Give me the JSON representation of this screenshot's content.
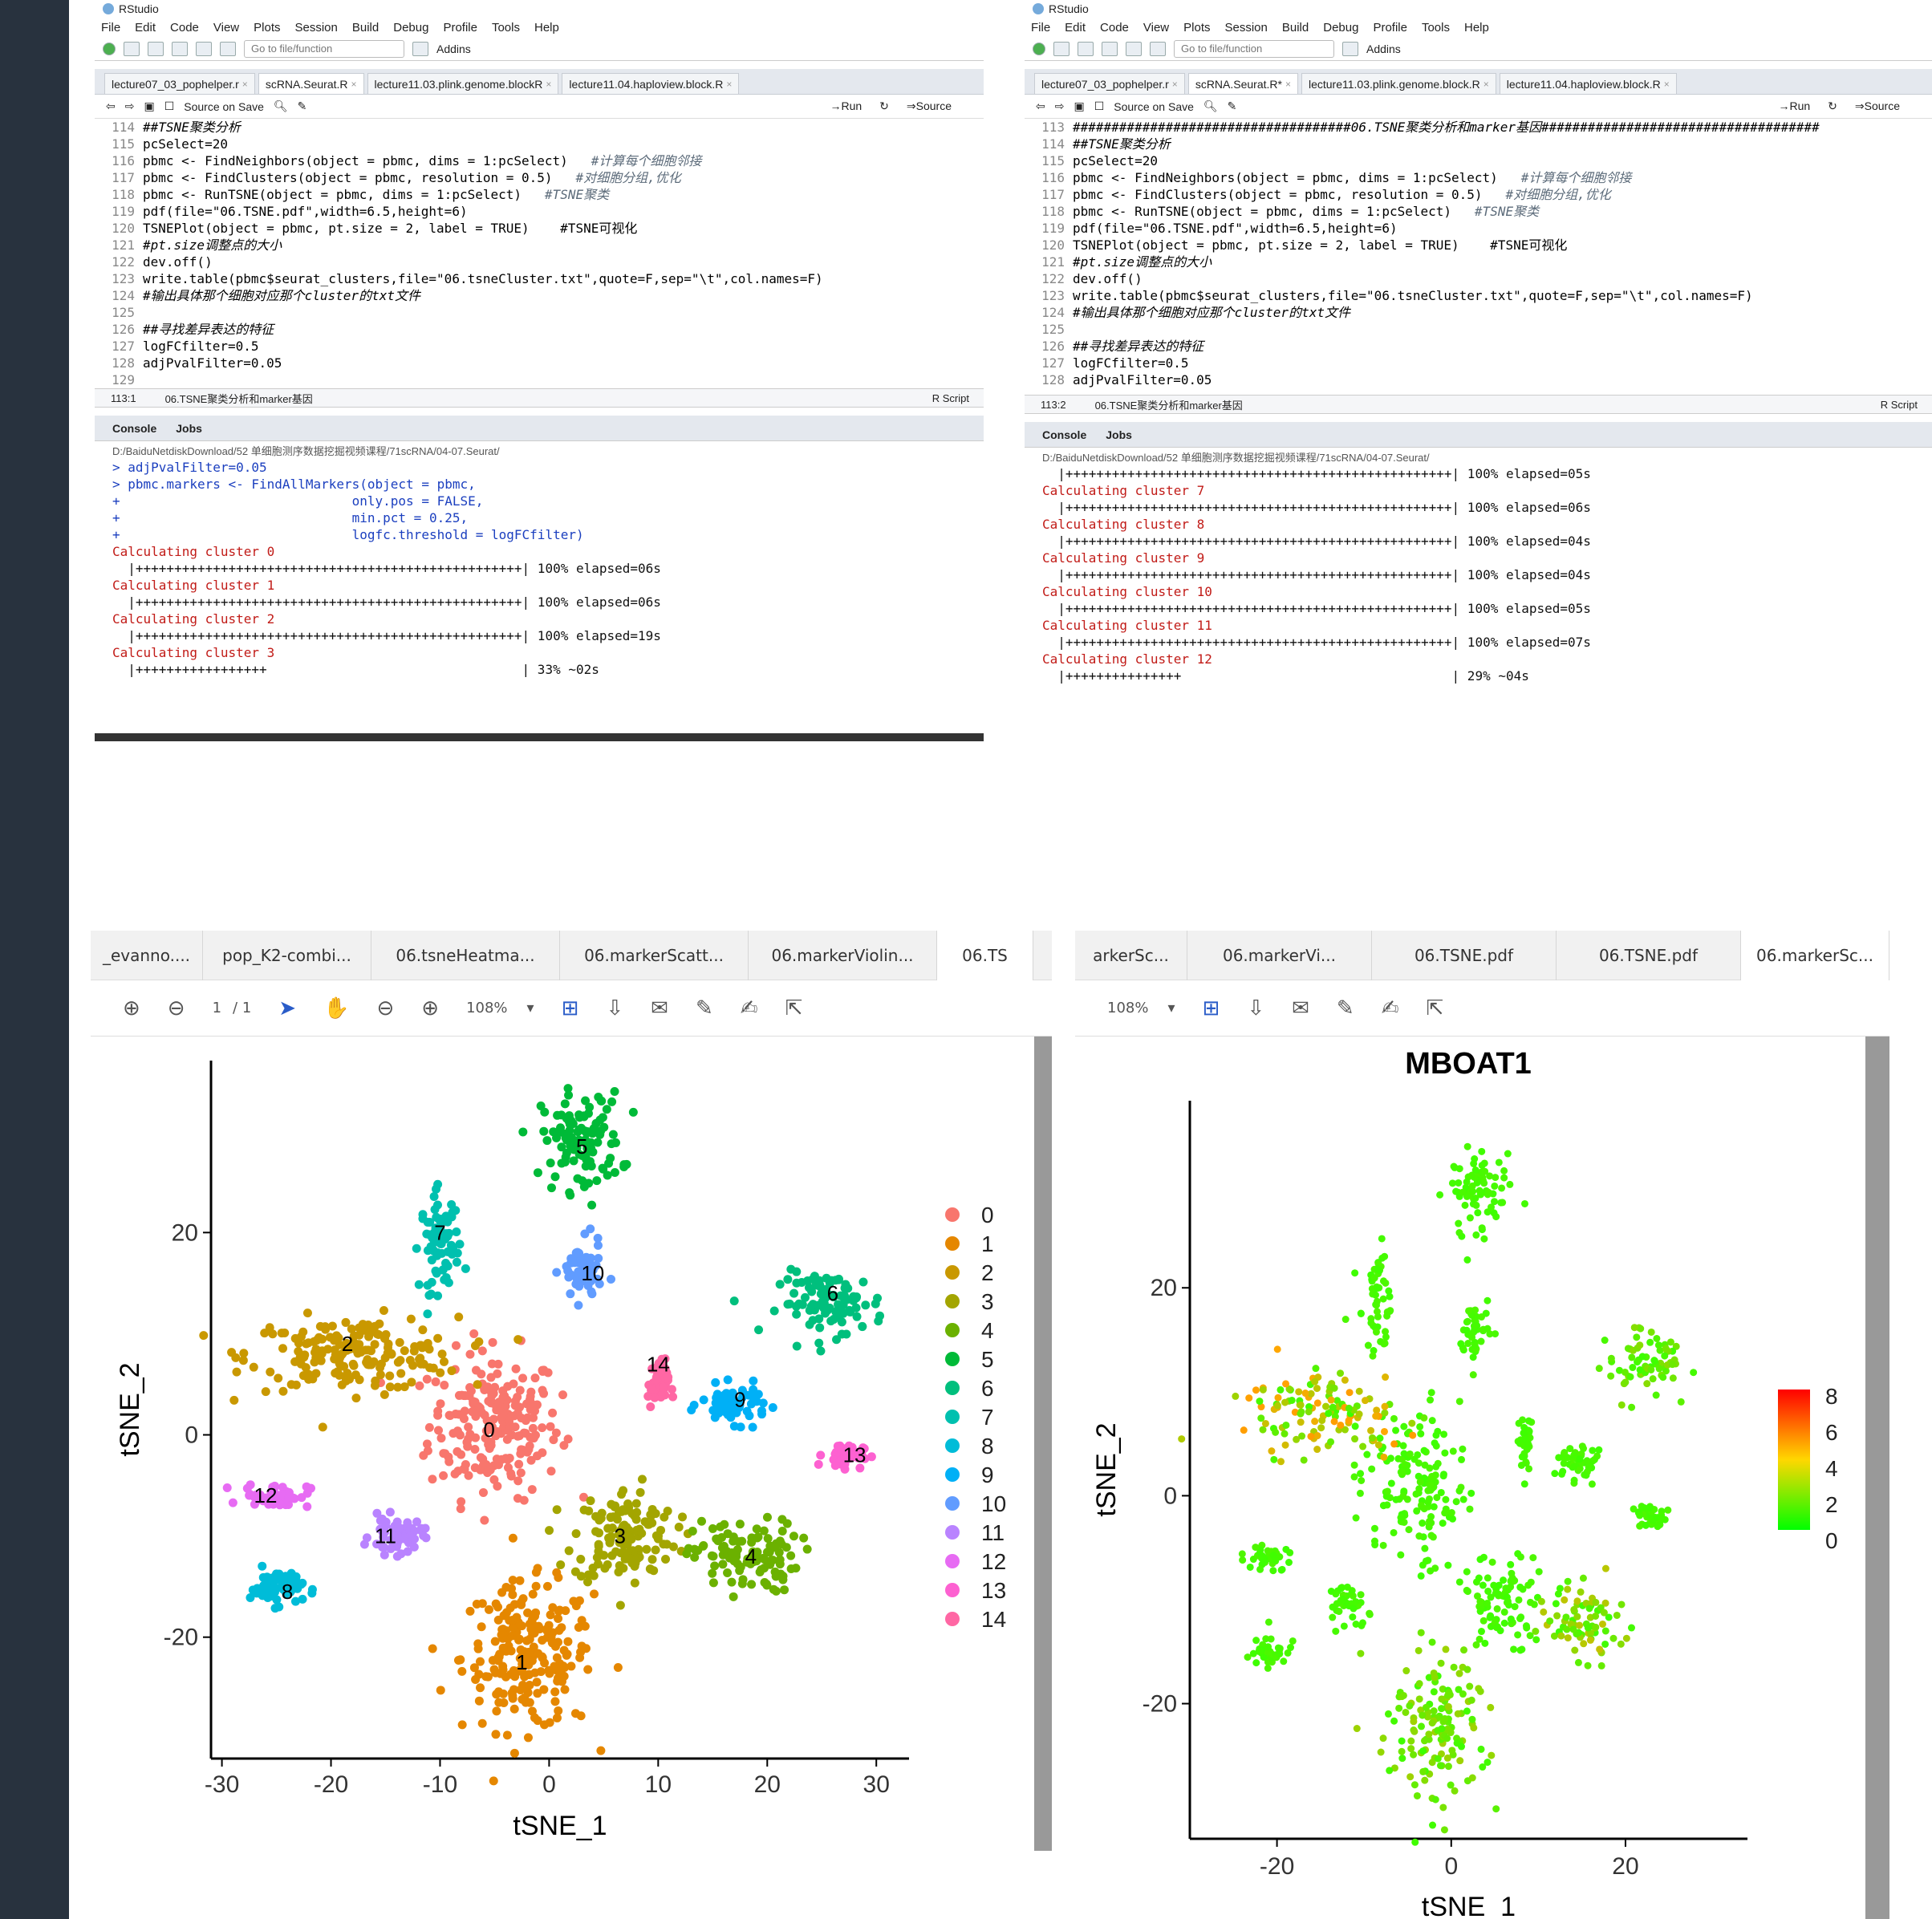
{
  "sidebar": {
    "color": "#28323e"
  },
  "rstudio_left": {
    "title": "RStudio",
    "menu": [
      "File",
      "Edit",
      "Code",
      "View",
      "Plots",
      "Session",
      "Build",
      "Debug",
      "Profile",
      "Tools",
      "Help"
    ],
    "goto_placeholder": "Go to file/function",
    "addins": "Addins",
    "tabs": [
      "lecture07_03_pophelper.r",
      "scRNA.Seurat.R",
      "lecture11.03.plink.genome.blockR",
      "lecture11.04.haploview.block.R"
    ],
    "source_on_save": "Source on Save",
    "run": "Run",
    "source": "Source",
    "code": [
      {
        "n": "114",
        "t": "##TSNE聚类分析"
      },
      {
        "n": "115",
        "t": "pcSelect=20"
      },
      {
        "n": "116",
        "t": "pbmc <- FindNeighbors(object = pbmc, dims = 1:pcSelect)",
        "c": "#计算每个细胞邻接"
      },
      {
        "n": "117",
        "t": "pbmc <- FindClusters(object = pbmc, resolution = 0.5)",
        "c": "#对细胞分组,优化"
      },
      {
        "n": "118",
        "t": "pbmc <- RunTSNE(object = pbmc, dims = 1:pcSelect)",
        "c": "#TSNE聚类"
      },
      {
        "n": "119",
        "t": "pdf(file=\"06.TSNE.pdf\",width=6.5,height=6)"
      },
      {
        "n": "120",
        "t": "TSNEPlot(object = pbmc, pt.size = 2, label = TRUE)    #TSNE可视化"
      },
      {
        "n": "121",
        "t": "#pt.size调整点的大小"
      },
      {
        "n": "122",
        "t": "dev.off()"
      },
      {
        "n": "123",
        "t": "write.table(pbmc$seurat_clusters,file=\"06.tsneCluster.txt\",quote=F,sep=\"\\t\",col.names=F)"
      },
      {
        "n": "124",
        "t": "#输出具体那个细胞对应那个cluster的txt文件"
      },
      {
        "n": "125",
        "t": ""
      },
      {
        "n": "126",
        "t": "##寻找差异表达的特征"
      },
      {
        "n": "127",
        "t": "logFCfilter=0.5"
      },
      {
        "n": "128",
        "t": "adjPvalFilter=0.05"
      },
      {
        "n": "129",
        "t": ""
      }
    ],
    "status_pos": "113:1",
    "status_section": "06.TSNE聚类分析和marker基因",
    "status_type": "R Script",
    "console_tab": "Console",
    "jobs_tab": "Jobs",
    "console_path": "D:/BaiduNetdiskDownload/52 单细胞测序数据挖掘视频课程/71scRNA/04-07.Seurat/",
    "console": [
      {
        "k": "b",
        "t": "> adjPvalFilter=0.05"
      },
      {
        "k": "b",
        "t": "> pbmc.markers <- FindAllMarkers(object = pbmc,"
      },
      {
        "k": "b",
        "t": "+                              only.pos = FALSE,"
      },
      {
        "k": "b",
        "t": "+                              min.pct = 0.25,"
      },
      {
        "k": "b",
        "t": "+                              logfc.threshold = logFCfilter)"
      },
      {
        "k": "r",
        "t": "Calculating cluster 0"
      },
      {
        "k": "k",
        "t": "  |++++++++++++++++++++++++++++++++++++++++++++++++++| 100% elapsed=06s"
      },
      {
        "k": "r",
        "t": "Calculating cluster 1"
      },
      {
        "k": "k",
        "t": "  |++++++++++++++++++++++++++++++++++++++++++++++++++| 100% elapsed=06s"
      },
      {
        "k": "r",
        "t": "Calculating cluster 2"
      },
      {
        "k": "k",
        "t": "  |++++++++++++++++++++++++++++++++++++++++++++++++++| 100% elapsed=19s"
      },
      {
        "k": "r",
        "t": "Calculating cluster 3"
      },
      {
        "k": "k",
        "t": "  |+++++++++++++++++                                 | 33% ~02s"
      }
    ]
  },
  "rstudio_right": {
    "title": "RStudio",
    "menu": [
      "File",
      "Edit",
      "Code",
      "View",
      "Plots",
      "Session",
      "Build",
      "Debug",
      "Profile",
      "Tools",
      "Help"
    ],
    "goto_placeholder": "Go to file/function",
    "addins": "Addins",
    "tabs": [
      "lecture07_03_pophelper.r",
      "scRNA.Seurat.R*",
      "lecture11.03.plink.genome.block.R",
      "lecture11.04.haploview.block.R"
    ],
    "source_on_save": "Source on Save",
    "run": "Run",
    "source": "Source",
    "code": [
      {
        "n": "113",
        "t": "####################################06.TSNE聚类分析和marker基因####################################"
      },
      {
        "n": "114",
        "t": "##TSNE聚类分析"
      },
      {
        "n": "115",
        "t": "pcSelect=20"
      },
      {
        "n": "116",
        "t": "pbmc <- FindNeighbors(object = pbmc, dims = 1:pcSelect)",
        "c": "#计算每个细胞邻接"
      },
      {
        "n": "117",
        "t": "pbmc <- FindClusters(object = pbmc, resolution = 0.5)",
        "c": "#对细胞分组,优化"
      },
      {
        "n": "118",
        "t": "pbmc <- RunTSNE(object = pbmc, dims = 1:pcSelect)",
        "c": "#TSNE聚类"
      },
      {
        "n": "119",
        "t": "pdf(file=\"06.TSNE.pdf\",width=6.5,height=6)"
      },
      {
        "n": "120",
        "t": "TSNEPlot(object = pbmc, pt.size = 2, label = TRUE)    #TSNE可视化"
      },
      {
        "n": "121",
        "t": "#pt.size调整点的大小"
      },
      {
        "n": "122",
        "t": "dev.off()"
      },
      {
        "n": "123",
        "t": "write.table(pbmc$seurat_clusters,file=\"06.tsneCluster.txt\",quote=F,sep=\"\\t\",col.names=F)"
      },
      {
        "n": "124",
        "t": "#输出具体那个细胞对应那个cluster的txt文件"
      },
      {
        "n": "125",
        "t": ""
      },
      {
        "n": "126",
        "t": "##寻找差异表达的特征"
      },
      {
        "n": "127",
        "t": "logFCfilter=0.5"
      },
      {
        "n": "128",
        "t": "adjPvalFilter=0.05"
      }
    ],
    "status_pos": "113:2",
    "status_section": "06.TSNE聚类分析和marker基因",
    "status_type": "R Script",
    "console_tab": "Console",
    "jobs_tab": "Jobs",
    "console_path": "D:/BaiduNetdiskDownload/52 单细胞测序数据挖掘视频课程/71scRNA/04-07.Seurat/",
    "console": [
      {
        "k": "k",
        "t": "  |++++++++++++++++++++++++++++++++++++++++++++++++++| 100% elapsed=05s"
      },
      {
        "k": "r",
        "t": "Calculating cluster 7"
      },
      {
        "k": "k",
        "t": "  |++++++++++++++++++++++++++++++++++++++++++++++++++| 100% elapsed=06s"
      },
      {
        "k": "r",
        "t": "Calculating cluster 8"
      },
      {
        "k": "k",
        "t": "  |++++++++++++++++++++++++++++++++++++++++++++++++++| 100% elapsed=04s"
      },
      {
        "k": "r",
        "t": "Calculating cluster 9"
      },
      {
        "k": "k",
        "t": "  |++++++++++++++++++++++++++++++++++++++++++++++++++| 100% elapsed=04s"
      },
      {
        "k": "r",
        "t": "Calculating cluster 10"
      },
      {
        "k": "k",
        "t": "  |++++++++++++++++++++++++++++++++++++++++++++++++++| 100% elapsed=05s"
      },
      {
        "k": "r",
        "t": "Calculating cluster 11"
      },
      {
        "k": "k",
        "t": "  |++++++++++++++++++++++++++++++++++++++++++++++++++| 100% elapsed=07s"
      },
      {
        "k": "r",
        "t": "Calculating cluster 12"
      },
      {
        "k": "k",
        "t": "  |+++++++++++++++                                   | 29% ~04s"
      }
    ]
  },
  "pdf_left": {
    "tabs": [
      "_evanno....",
      "pop_K2-combi...",
      "06.tsneHeatma...",
      "06.markerScatt...",
      "06.markerViolin...",
      "06.TS"
    ],
    "active_tab": 5,
    "page": "1",
    "page_total": "/ 1",
    "zoom": "108%"
  },
  "pdf_right": {
    "tabs": [
      "arkerSc...",
      "06.markerVi...",
      "06.TSNE.pdf",
      "06.TSNE.pdf",
      "06.markerSc..."
    ],
    "active_tab": 4,
    "zoom": "108%"
  },
  "chart_data": [
    {
      "type": "scatter",
      "title": "",
      "xlabel": "tSNE_1",
      "ylabel": "tSNE_2",
      "xlim": [
        -31,
        33
      ],
      "ylim": [
        -32,
        37
      ],
      "xticks": [
        -30,
        -20,
        -10,
        0,
        10,
        20,
        30
      ],
      "yticks": [
        -20,
        0,
        20
      ],
      "legend_position": "right",
      "series": [
        {
          "name": "0",
          "color": "#F8766D",
          "center": [
            -5,
            1
          ],
          "spread": [
            5,
            6
          ],
          "label_pos": [
            -5.5,
            0.5
          ]
        },
        {
          "name": "1",
          "color": "#E58700",
          "center": [
            -2,
            -22
          ],
          "spread": [
            5,
            6
          ],
          "label_pos": [
            -2.5,
            -22.5
          ]
        },
        {
          "name": "2",
          "color": "#C99800",
          "center": [
            -18,
            8
          ],
          "spread": [
            8,
            3
          ],
          "label_pos": [
            -18.5,
            9
          ]
        },
        {
          "name": "3",
          "color": "#A3A500",
          "center": [
            7,
            -10
          ],
          "spread": [
            4,
            4
          ],
          "label_pos": [
            6.5,
            -10
          ]
        },
        {
          "name": "4",
          "color": "#6BB100",
          "center": [
            18,
            -12
          ],
          "spread": [
            4,
            3
          ],
          "label_pos": [
            18.5,
            -12
          ]
        },
        {
          "name": "5",
          "color": "#00BA38",
          "center": [
            3,
            29
          ],
          "spread": [
            3,
            4
          ],
          "label_pos": [
            3,
            28.5
          ]
        },
        {
          "name": "6",
          "color": "#00BF7D",
          "center": [
            26,
            13
          ],
          "spread": [
            4,
            2.5
          ],
          "label_pos": [
            26,
            14
          ]
        },
        {
          "name": "7",
          "color": "#00C0AF",
          "center": [
            -10,
            19
          ],
          "spread": [
            1.5,
            4
          ],
          "label_pos": [
            -10,
            20
          ]
        },
        {
          "name": "8",
          "color": "#00BCD8",
          "center": [
            -25,
            -15
          ],
          "spread": [
            2,
            1.5
          ],
          "label_pos": [
            -24,
            -15.5
          ]
        },
        {
          "name": "9",
          "color": "#00B0F6",
          "center": [
            17,
            3
          ],
          "spread": [
            2.5,
            1.5
          ],
          "label_pos": [
            17.5,
            3.5
          ]
        },
        {
          "name": "10",
          "color": "#619CFF",
          "center": [
            3,
            16
          ],
          "spread": [
            1.5,
            2.5
          ],
          "label_pos": [
            4,
            16
          ]
        },
        {
          "name": "11",
          "color": "#B983FF",
          "center": [
            -14,
            -10
          ],
          "spread": [
            2,
            1.5
          ],
          "label_pos": [
            -15,
            -10
          ]
        },
        {
          "name": "12",
          "color": "#E76BF3",
          "center": [
            -25,
            -6
          ],
          "spread": [
            2.5,
            1
          ],
          "label_pos": [
            -26,
            -6
          ]
        },
        {
          "name": "13",
          "color": "#FD61D1",
          "center": [
            27,
            -2
          ],
          "spread": [
            1.5,
            1
          ],
          "label_pos": [
            28,
            -2
          ]
        },
        {
          "name": "14",
          "color": "#FF67A4",
          "center": [
            10,
            5
          ],
          "spread": [
            0.8,
            2
          ],
          "label_pos": [
            10,
            7
          ]
        }
      ]
    },
    {
      "type": "scatter",
      "title": "MBOAT1",
      "xlabel": "tSNE_1",
      "ylabel": "tSNE_2",
      "xlim": [
        -30,
        34
      ],
      "ylim": [
        -33,
        38
      ],
      "xticks": [
        -20,
        0,
        20
      ],
      "yticks": [
        -20,
        0,
        20
      ],
      "color_scale": {
        "low": "#00FF00",
        "mid": "#FFD700",
        "high": "#FF0000",
        "min": 0,
        "max": 8,
        "ticks": [
          "8",
          "6",
          "4",
          "2",
          "0"
        ]
      },
      "legend_position": "right"
    }
  ]
}
